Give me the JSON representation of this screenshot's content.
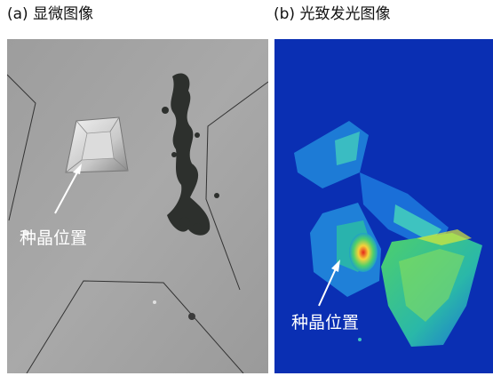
{
  "panels": [
    {
      "caption": "(a) 显微图像",
      "annotation": "种晶位置"
    },
    {
      "caption": "(b) 光致发光图像",
      "annotation": "种晶位置"
    }
  ],
  "colors": {
    "micro_background": "#a3a3a3",
    "pl_background": "#0a2fb3",
    "pl_hotspot": "#e3261a",
    "pl_mid": "#4fd06a"
  }
}
